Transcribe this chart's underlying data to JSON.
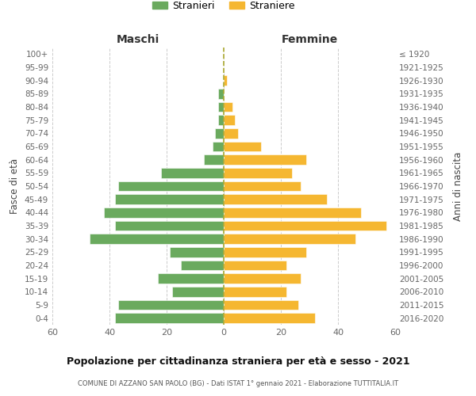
{
  "age_groups": [
    "100+",
    "95-99",
    "90-94",
    "85-89",
    "80-84",
    "75-79",
    "70-74",
    "65-69",
    "60-64",
    "55-59",
    "50-54",
    "45-49",
    "40-44",
    "35-39",
    "30-34",
    "25-29",
    "20-24",
    "15-19",
    "10-14",
    "5-9",
    "0-4"
  ],
  "birth_years": [
    "≤ 1920",
    "1921-1925",
    "1926-1930",
    "1931-1935",
    "1936-1940",
    "1941-1945",
    "1946-1950",
    "1951-1955",
    "1956-1960",
    "1961-1965",
    "1966-1970",
    "1971-1975",
    "1976-1980",
    "1981-1985",
    "1986-1990",
    "1991-1995",
    "1996-2000",
    "2001-2005",
    "2006-2010",
    "2011-2015",
    "2016-2020"
  ],
  "males": [
    0,
    0,
    0,
    2,
    2,
    2,
    3,
    4,
    7,
    22,
    37,
    38,
    42,
    38,
    47,
    19,
    15,
    23,
    18,
    37,
    38
  ],
  "females": [
    0,
    0,
    1,
    0,
    3,
    4,
    5,
    13,
    29,
    24,
    27,
    36,
    48,
    57,
    46,
    29,
    22,
    27,
    22,
    26,
    32
  ],
  "male_color": "#6aaa5e",
  "female_color": "#f5b731",
  "background_color": "#ffffff",
  "grid_color": "#cccccc",
  "title": "Popolazione per cittadinanza straniera per età e sesso - 2021",
  "subtitle": "COMUNE DI AZZANO SAN PAOLO (BG) - Dati ISTAT 1° gennaio 2021 - Elaborazione TUTTITALIA.IT",
  "xlabel_left": "Maschi",
  "xlabel_right": "Femmine",
  "ylabel_left": "Fasce di età",
  "ylabel_right": "Anni di nascita",
  "xlim": 60,
  "legend_labels": [
    "Stranieri",
    "Straniere"
  ]
}
